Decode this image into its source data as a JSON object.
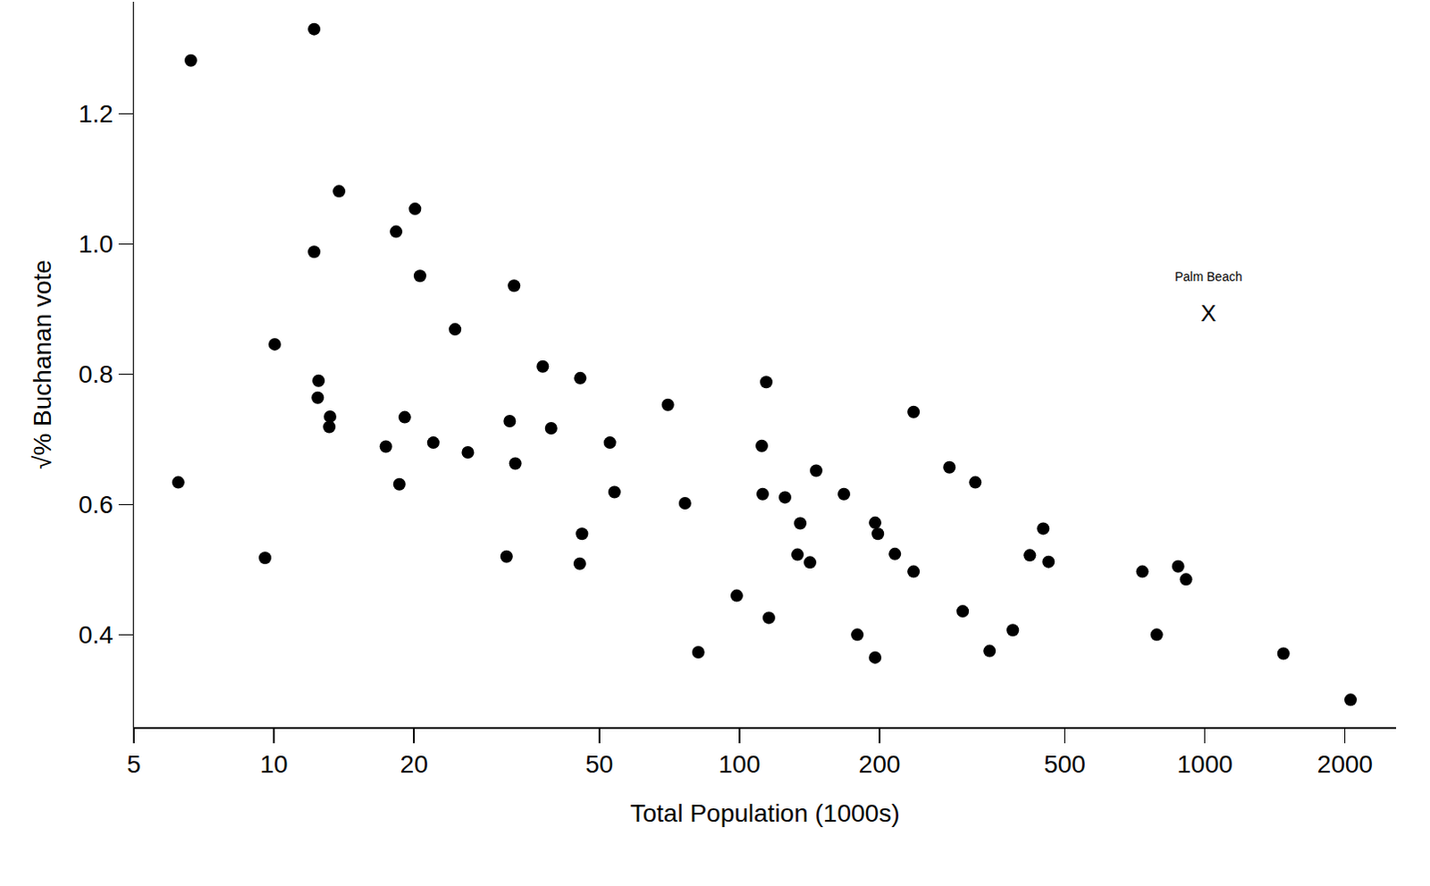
{
  "chart_data": {
    "type": "scatter",
    "x_label": "Total Population (1000s)",
    "y_label": "√% Buchanan vote",
    "log": "x",
    "grid": false,
    "color": "#000000",
    "marker": "circle",
    "x": [
      6.63,
      12.2,
      6.23,
      9.57,
      10.04,
      12.2,
      12.47,
      12.42,
      13.2,
      13.15,
      13.8,
      17.4,
      18.3,
      18.6,
      19.1,
      20.1,
      20.6,
      22.0,
      24.5,
      26.1,
      31.6,
      32.1,
      32.8,
      33.0,
      37.8,
      39.4,
      45.5,
      45.4,
      45.9,
      52.7,
      53.9,
      70.2,
      76.4,
      81.6,
      98.7,
      111.7,
      112.2,
      114.2,
      115.7,
      125.3,
      133.3,
      135.1,
      141.8,
      146.2,
      167.7,
      179.2,
      195.7,
      195.7,
      198.4,
      215.8,
      236.7,
      236.7,
      282.6,
      301.8,
      321.2,
      344.7,
      386.6,
      420.6,
      449.4,
      461.4,
      734,
      788,
      876,
      911,
      1475,
      2056
    ],
    "values": [
      1.282,
      1.33,
      0.634,
      0.518,
      0.846,
      0.988,
      0.79,
      0.764,
      0.735,
      0.719,
      1.081,
      0.689,
      1.019,
      0.631,
      0.734,
      1.054,
      0.951,
      0.695,
      0.869,
      0.68,
      0.52,
      0.728,
      0.936,
      0.663,
      0.812,
      0.717,
      0.794,
      0.509,
      0.555,
      0.695,
      0.619,
      0.753,
      0.602,
      0.373,
      0.46,
      0.69,
      0.616,
      0.788,
      0.426,
      0.611,
      0.523,
      0.571,
      0.511,
      0.652,
      0.616,
      0.4,
      0.572,
      0.365,
      0.555,
      0.524,
      0.742,
      0.497,
      0.657,
      0.436,
      0.634,
      0.375,
      0.407,
      0.522,
      0.563,
      0.512,
      0.497,
      0.4,
      0.505,
      0.485,
      0.371,
      0.3
    ],
    "xlim": [
      5,
      2575
    ],
    "xticks": [
      5,
      10,
      20,
      50,
      100,
      200,
      500,
      1000,
      2000
    ],
    "ylim": [
      0.258,
      1.372
    ],
    "yticks": [
      0.4,
      0.6,
      {
        "value": 1,
        "label": "1.0"
      },
      0.8,
      1.2
    ],
    "annotations": [
      {
        "text": "Palm Beach",
        "marker_text": "X",
        "x": 1018,
        "y": 0.891
      }
    ]
  }
}
